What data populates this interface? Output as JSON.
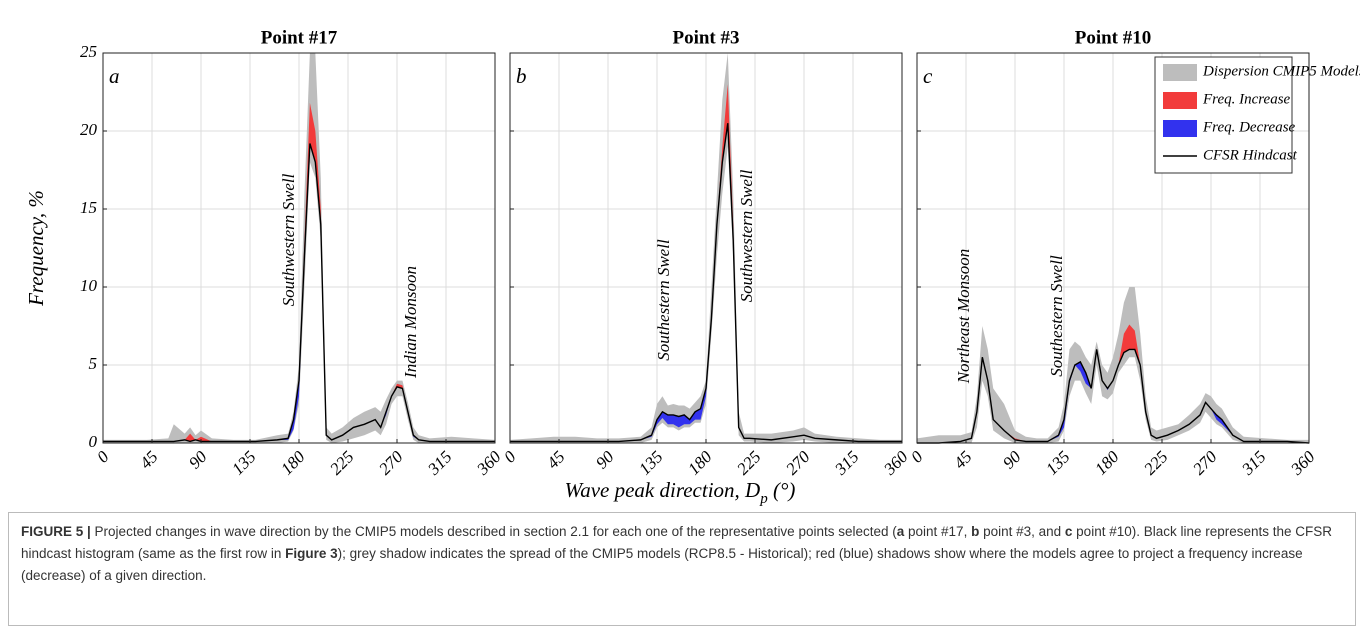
{
  "figure": {
    "ylabel": "Frequency, %",
    "xlabel": {
      "text": "Wave peak direction, D",
      "sub": "p",
      "after": " (°)"
    },
    "caption": [
      {
        "text": "FIGURE 5 |",
        "bold": true
      },
      {
        "text": " Projected changes in wave direction by the CMIP5 models described in section 2.1 for each one of the representative points selected (",
        "bold": false
      },
      {
        "text": "a",
        "bold": true
      },
      {
        "text": " point #17, ",
        "bold": false
      },
      {
        "text": "b",
        "bold": true
      },
      {
        "text": " point #3, and ",
        "bold": false
      },
      {
        "text": "c",
        "bold": true
      },
      {
        "text": " point #10). Black line represents the CFSR hindcast histogram (same as the first row in ",
        "bold": false
      },
      {
        "text": "Figure 3",
        "bold": true
      },
      {
        "text": "); grey shadow indicates the spread of the CMIP5 models (RCP8.5 - Historical); red (blue) shadows show where the models agree to project a frequency increase (decrease) of a given direction.",
        "bold": false
      }
    ]
  },
  "chart_data": [
    {
      "type": "line",
      "title": "Point #17",
      "panel": "a",
      "xlim": [
        0,
        360
      ],
      "xticks": [
        0,
        45,
        90,
        135,
        180,
        225,
        270,
        315,
        360
      ],
      "ylim": [
        0,
        25
      ],
      "yticks": [
        0,
        5,
        10,
        15,
        20,
        25
      ],
      "grid": true,
      "annotations": [
        "Southwestern Swell",
        "Indian Monsoon"
      ],
      "x": [
        0,
        20,
        40,
        60,
        65,
        75,
        80,
        85,
        90,
        100,
        120,
        140,
        160,
        170,
        175,
        180,
        185,
        190,
        195,
        200,
        205,
        210,
        220,
        230,
        240,
        250,
        255,
        260,
        265,
        270,
        275,
        280,
        285,
        290,
        300,
        320,
        340,
        360
      ],
      "hindcast": [
        0.1,
        0.1,
        0.1,
        0.1,
        0.1,
        0.2,
        0.1,
        0.2,
        0.1,
        0.1,
        0.1,
        0.1,
        0.2,
        0.3,
        1.5,
        4,
        12,
        19.2,
        18,
        14,
        0.5,
        0.2,
        0.5,
        1,
        1.2,
        1.5,
        1,
        2,
        3,
        3.6,
        3.5,
        2,
        0.5,
        0.2,
        0.1,
        0.1,
        0.1,
        0.1
      ],
      "projection": [
        0.1,
        0.1,
        0.1,
        0.1,
        0.1,
        0.2,
        0.6,
        0.2,
        0.4,
        0.1,
        0.1,
        0.1,
        0.2,
        0.2,
        0.9,
        3.0,
        13,
        21.8,
        20,
        15,
        0.5,
        0.2,
        0.5,
        1,
        1.2,
        1.5,
        1,
        1.8,
        3,
        3.8,
        3.7,
        2,
        0.4,
        0.2,
        0.1,
        0.1,
        0.1,
        0.1
      ],
      "spread_high": [
        0.2,
        0.2,
        0.2,
        0.3,
        1.2,
        0.6,
        1.0,
        0.5,
        0.8,
        0.3,
        0.2,
        0.2,
        0.5,
        0.6,
        2,
        5,
        16,
        25,
        25,
        17,
        1,
        0.6,
        1,
        1.6,
        2,
        2.3,
        2,
        2.8,
        3.5,
        4,
        4,
        2.6,
        1,
        0.5,
        0.3,
        0.4,
        0.3,
        0.2
      ],
      "spread_low": [
        0,
        0,
        0,
        0,
        0,
        0,
        0,
        0,
        0,
        0,
        0,
        0,
        0,
        0.1,
        0.8,
        2.5,
        10,
        18,
        17,
        13,
        0.2,
        0,
        0.1,
        0.3,
        0.5,
        0.8,
        0.5,
        1.2,
        2.5,
        3,
        3,
        1.5,
        0.2,
        0,
        0,
        0,
        0,
        0
      ]
    },
    {
      "type": "line",
      "title": "Point #3",
      "panel": "b",
      "xlim": [
        0,
        360
      ],
      "xticks": [
        0,
        45,
        90,
        135,
        180,
        225,
        270,
        315,
        360
      ],
      "ylim": [
        0,
        25
      ],
      "yticks": [
        0,
        5,
        10,
        15,
        20,
        25
      ],
      "grid": true,
      "annotations": [
        "Southestern Swell",
        "Southwestern Swell"
      ],
      "x": [
        0,
        20,
        40,
        60,
        80,
        100,
        120,
        130,
        135,
        140,
        145,
        150,
        155,
        160,
        165,
        170,
        175,
        180,
        185,
        190,
        195,
        200,
        205,
        210,
        215,
        220,
        240,
        260,
        270,
        280,
        300,
        320,
        340,
        360
      ],
      "hindcast": [
        0.1,
        0.1,
        0.1,
        0.1,
        0.1,
        0.1,
        0.2,
        0.5,
        1.5,
        2.0,
        1.8,
        1.8,
        1.7,
        1.8,
        1.5,
        2,
        2.2,
        3.5,
        8,
        14,
        18,
        20.5,
        13,
        1,
        0.3,
        0.3,
        0.2,
        0.4,
        0.5,
        0.3,
        0.2,
        0.1,
        0.1,
        0.1
      ],
      "projection": [
        0.1,
        0.1,
        0.1,
        0.1,
        0.1,
        0.1,
        0.2,
        0.4,
        1.2,
        1.6,
        1.2,
        1.2,
        1.0,
        1.2,
        1.2,
        1.5,
        1.5,
        3.0,
        8,
        14,
        19,
        23,
        14,
        1,
        0.3,
        0.3,
        0.2,
        0.4,
        0.5,
        0.3,
        0.2,
        0.1,
        0.1,
        0.1
      ],
      "spread_high": [
        0.2,
        0.3,
        0.4,
        0.4,
        0.3,
        0.3,
        0.4,
        1,
        2.5,
        3,
        2.4,
        2.5,
        2.4,
        2.4,
        2.2,
        2.6,
        3,
        4,
        10,
        16,
        22,
        25,
        16,
        2,
        0.6,
        0.6,
        0.6,
        0.8,
        1,
        0.6,
        0.4,
        0.3,
        0.2,
        0.2
      ],
      "spread_low": [
        0,
        0,
        0,
        0,
        0,
        0,
        0,
        0.2,
        1,
        1.3,
        1,
        1,
        0.8,
        1,
        1,
        1.3,
        1.3,
        2.5,
        7,
        12,
        16,
        19,
        12,
        0.5,
        0.1,
        0.1,
        0,
        0.1,
        0.2,
        0.1,
        0,
        0,
        0,
        0
      ]
    },
    {
      "type": "line",
      "title": "Point #10",
      "panel": "c",
      "xlim": [
        0,
        360
      ],
      "xticks": [
        0,
        45,
        90,
        135,
        180,
        225,
        270,
        315,
        360
      ],
      "ylim": [
        0,
        25
      ],
      "yticks": [
        0,
        5,
        10,
        15,
        20,
        25
      ],
      "grid": true,
      "annotations": [
        "Northeast Monsoon",
        "Southestern Swell"
      ],
      "legend": [
        {
          "name": "Dispersion CMIP5 Models",
          "color": "#bdbdbd"
        },
        {
          "name": "Freq. Increase",
          "color": "#f23b3b"
        },
        {
          "name": "Freq. Decrease",
          "color": "#3232ee"
        },
        {
          "name": "CFSR Hindcast",
          "color": "#000000"
        }
      ],
      "x": [
        0,
        20,
        40,
        50,
        55,
        60,
        65,
        70,
        80,
        90,
        100,
        110,
        120,
        130,
        135,
        140,
        145,
        150,
        155,
        160,
        165,
        170,
        175,
        180,
        185,
        190,
        195,
        200,
        205,
        210,
        215,
        220,
        230,
        240,
        250,
        260,
        265,
        270,
        275,
        280,
        290,
        300,
        320,
        340,
        360
      ],
      "hindcast": [
        0,
        0,
        0.1,
        0.3,
        2,
        5.5,
        4,
        1.5,
        0.8,
        0.2,
        0.1,
        0.1,
        0.1,
        0.5,
        1.5,
        4,
        5,
        5.2,
        4.5,
        3.5,
        6,
        4,
        3.5,
        4,
        5,
        5.8,
        6,
        6,
        5,
        2,
        0.5,
        0.3,
        0.5,
        0.8,
        1.2,
        1.8,
        2.6,
        2.2,
        1.8,
        1.5,
        0.5,
        0.1,
        0.1,
        0.1,
        0
      ],
      "projection": [
        0,
        0,
        0.1,
        0.3,
        2,
        5.5,
        4,
        1.5,
        0.8,
        0.3,
        0.1,
        0.1,
        0.1,
        0.4,
        1.0,
        3.8,
        5,
        4.6,
        3.8,
        3.5,
        6,
        4,
        3.4,
        4,
        5,
        7,
        7.6,
        7.2,
        5,
        2,
        0.5,
        0.3,
        0.5,
        0.8,
        1.2,
        1.8,
        2.6,
        2.2,
        1.5,
        1.2,
        0.5,
        0.1,
        0.1,
        0.1,
        0
      ],
      "spread_high": [
        0.3,
        0.5,
        0.5,
        0.7,
        3,
        7.5,
        6,
        3.5,
        2.5,
        0.8,
        0.4,
        0.3,
        0.3,
        1,
        2.5,
        6,
        6.5,
        6.2,
        5.5,
        5,
        6.5,
        5,
        4.5,
        5.5,
        7,
        9,
        10,
        10,
        7,
        3,
        1,
        0.8,
        1,
        1.2,
        1.8,
        2.5,
        3.2,
        3,
        2.5,
        2.2,
        1,
        0.4,
        0.3,
        0.2,
        0.2
      ],
      "spread_low": [
        0,
        0,
        0,
        0,
        1,
        4,
        3,
        0.8,
        0.3,
        0,
        0,
        0,
        0,
        0.1,
        0.8,
        3,
        4,
        4,
        3.2,
        2.5,
        5,
        3,
        2.8,
        3.2,
        4.5,
        5,
        5.5,
        5.5,
        4,
        1.5,
        0.2,
        0.1,
        0.2,
        0.5,
        0.8,
        1.3,
        2,
        1.6,
        1.2,
        1,
        0.2,
        0,
        0,
        0,
        0
      ]
    }
  ]
}
